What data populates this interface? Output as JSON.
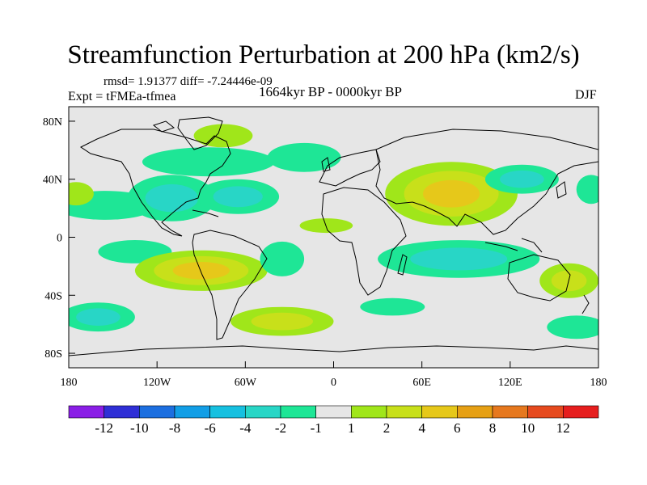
{
  "chart_data": {
    "type": "heatmap",
    "title": "Streamfunction Perturbation at 200 hPa (km2/s)",
    "stats_text": "rmsd= 1.91377  diff= -7.24446e-09",
    "experiment": "Expt = tFMEa-tfmea",
    "period": "1664kyr BP - 0000kyr BP",
    "season": "DJF",
    "x_ticks": [
      "180",
      "120W",
      "60W",
      "0",
      "60E",
      "120E",
      "180"
    ],
    "y_ticks": [
      "80N",
      "40N",
      "0",
      "40S",
      "80S"
    ],
    "xlim": [
      -180,
      180
    ],
    "ylim": [
      -90,
      90
    ],
    "colorbar": {
      "labels": [
        "-12",
        "-10",
        "-8",
        "-6",
        "-4",
        "-2",
        "-1",
        "1",
        "2",
        "4",
        "6",
        "8",
        "10",
        "12"
      ],
      "colors": [
        "#8a1ee6",
        "#2f2fd6",
        "#1c6fe0",
        "#129ee6",
        "#16c0e0",
        "#28d6c6",
        "#1ee696",
        "#e6e6e6",
        "#a0e61a",
        "#c8e01a",
        "#e6c81a",
        "#e6a014",
        "#e6781e",
        "#e64a1e",
        "#e61e1e"
      ]
    },
    "anomalies": [
      {
        "lon": -155,
        "lat": 22,
        "rlon": 35,
        "rlat": 10,
        "value": -1.5
      },
      {
        "lon": -175,
        "lat": 30,
        "rlon": 12,
        "rlat": 8,
        "value": 1.5
      },
      {
        "lon": -110,
        "lat": 27,
        "rlon": 30,
        "rlat": 16,
        "value": -3
      },
      {
        "lon": -65,
        "lat": 28,
        "rlon": 28,
        "rlat": 12,
        "value": -3
      },
      {
        "lon": -85,
        "lat": 52,
        "rlon": 45,
        "rlat": 10,
        "value": -1.5
      },
      {
        "lon": -75,
        "lat": 70,
        "rlon": 20,
        "rlat": 8,
        "value": 1.5
      },
      {
        "lon": -20,
        "lat": 55,
        "rlon": 25,
        "rlat": 10,
        "value": -1.5
      },
      {
        "lon": 80,
        "lat": 30,
        "rlon": 45,
        "rlat": 22,
        "value": 5
      },
      {
        "lon": 128,
        "lat": 40,
        "rlon": 25,
        "rlat": 10,
        "value": -2
      },
      {
        "lon": 175,
        "lat": 33,
        "rlon": 10,
        "rlat": 10,
        "value": -1.5
      },
      {
        "lon": -5,
        "lat": 8,
        "rlon": 18,
        "rlat": 5,
        "value": 1.5
      },
      {
        "lon": -135,
        "lat": -10,
        "rlon": 25,
        "rlat": 8,
        "value": -1.5
      },
      {
        "lon": -90,
        "lat": -23,
        "rlon": 45,
        "rlat": 14,
        "value": 5
      },
      {
        "lon": -35,
        "lat": -15,
        "rlon": 15,
        "rlat": 12,
        "value": -1.5
      },
      {
        "lon": 85,
        "lat": -15,
        "rlon": 55,
        "rlat": 13,
        "value": -3.5
      },
      {
        "lon": 160,
        "lat": -30,
        "rlon": 20,
        "rlat": 12,
        "value": 3
      },
      {
        "lon": -160,
        "lat": -55,
        "rlon": 25,
        "rlat": 10,
        "value": -3
      },
      {
        "lon": -35,
        "lat": -58,
        "rlon": 35,
        "rlat": 10,
        "value": 3
      },
      {
        "lon": 40,
        "lat": -48,
        "rlon": 22,
        "rlat": 6,
        "value": -1.5
      },
      {
        "lon": 165,
        "lat": -62,
        "rlon": 20,
        "rlat": 8,
        "value": -1.5
      }
    ]
  }
}
